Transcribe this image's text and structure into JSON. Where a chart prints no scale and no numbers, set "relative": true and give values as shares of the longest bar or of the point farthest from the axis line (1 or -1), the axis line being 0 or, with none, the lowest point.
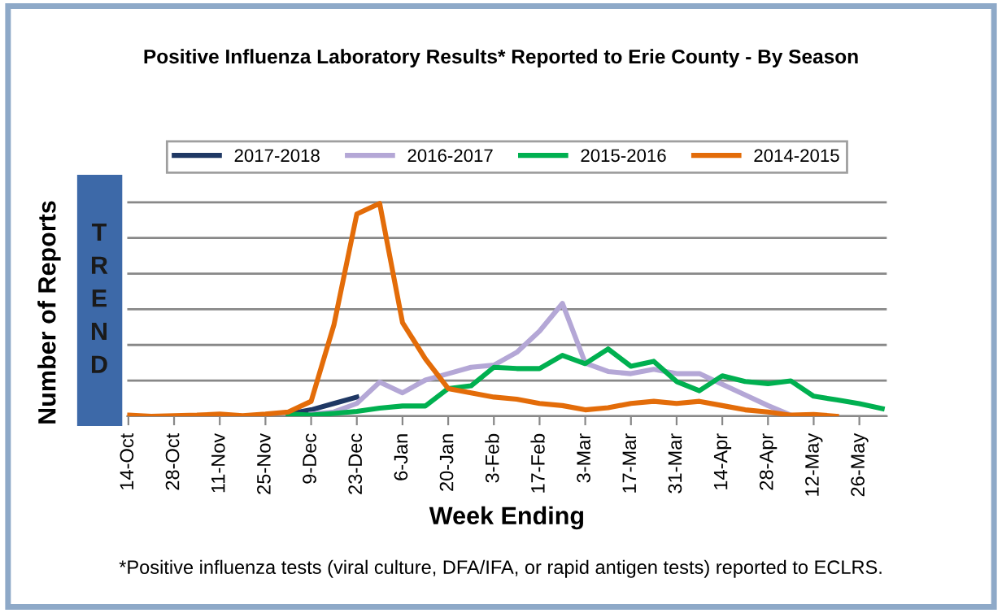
{
  "chart_data": {
    "type": "line",
    "title": "Positive Influenza Laboratory Results* Reported to Erie County - By Season",
    "xlabel": "Week Ending",
    "ylabel": "Number of Reports",
    "relative": true,
    "grid": "y",
    "legend": "top",
    "marker": "none",
    "line_style": "solid",
    "categories": [
      "14-Oct",
      null,
      "28-Oct",
      null,
      "11-Nov",
      null,
      "25-Nov",
      null,
      "9-Dec",
      null,
      "23-Dec",
      null,
      "6-Jan",
      null,
      "20-Jan",
      null,
      "3-Feb",
      null,
      "17-Feb",
      null,
      "3-Mar",
      null,
      "17-Mar",
      null,
      "31-Mar",
      null,
      "14-Apr",
      null,
      "28-Apr",
      null,
      "12-May",
      null,
      "26-May",
      null
    ],
    "series": [
      {
        "name": "2017-2018",
        "color": "#1f3864",
        "values": [
          null,
          null,
          null,
          null,
          null,
          null,
          null,
          0.01,
          0.03,
          0.06,
          0.09,
          null,
          null,
          null,
          null,
          null,
          null,
          null,
          null,
          null,
          null,
          null,
          null,
          null,
          null,
          null,
          null,
          null,
          null,
          null,
          null,
          null,
          null,
          null
        ]
      },
      {
        "name": "2016-2017",
        "color": "#b4a7d6",
        "values": [
          null,
          null,
          null,
          null,
          null,
          null,
          null,
          null,
          0.01,
          0.02,
          0.06,
          0.16,
          0.11,
          0.17,
          0.2,
          0.23,
          0.24,
          0.3,
          0.4,
          0.53,
          0.25,
          0.21,
          0.2,
          0.22,
          0.2,
          0.2,
          0.15,
          0.1,
          0.05,
          0.005,
          null,
          null,
          null,
          null
        ]
      },
      {
        "name": "2015-2016",
        "color": "#00b050",
        "values": [
          null,
          null,
          null,
          null,
          null,
          null,
          null,
          0.01,
          0.005,
          0.013,
          0.023,
          0.038,
          0.048,
          0.048,
          0.13,
          0.143,
          0.23,
          0.224,
          0.224,
          0.286,
          0.247,
          0.316,
          0.235,
          0.258,
          0.163,
          0.12,
          0.19,
          0.163,
          0.153,
          0.166,
          0.094,
          0.077,
          0.059,
          0.036
        ]
      },
      {
        "name": "2014-2015",
        "color": "#e36c09",
        "values": [
          0.005,
          0,
          0.003,
          0.005,
          0.01,
          0.003,
          0.01,
          0.02,
          0.07,
          0.43,
          0.95,
          1,
          0.44,
          0.27,
          0.13,
          0.11,
          0.09,
          0.08,
          0.06,
          0.05,
          0.03,
          0.04,
          0.06,
          0.07,
          0.06,
          0.07,
          0.05,
          0.03,
          0.02,
          0.005,
          0.008,
          0,
          null,
          null
        ]
      }
    ],
    "annotations": [
      "TREND",
      "*Positive influenza tests (viral culture, DFA/IFA, or rapid antigen tests) reported to ECLRS."
    ]
  }
}
